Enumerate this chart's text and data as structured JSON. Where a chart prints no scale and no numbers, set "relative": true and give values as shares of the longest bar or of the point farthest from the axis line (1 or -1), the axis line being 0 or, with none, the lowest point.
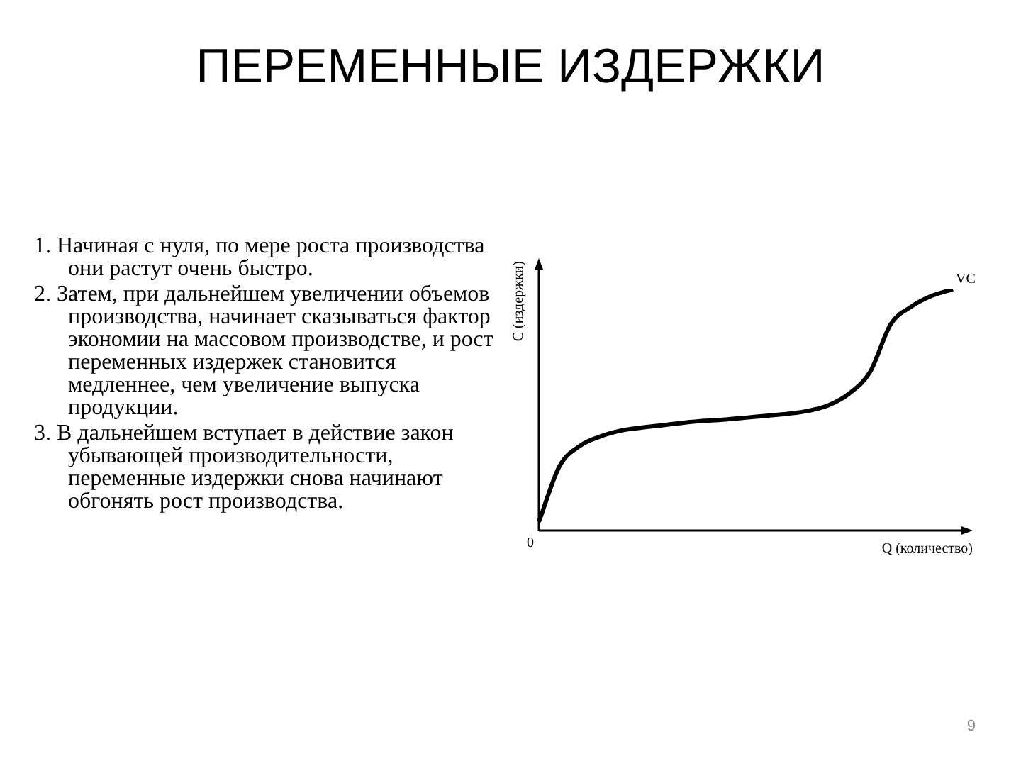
{
  "chart_data": {
    "type": "line",
    "title": "ПЕРЕМЕННЫЕ ИЗДЕРЖКИ",
    "xlabel": "Q (количество)",
    "ylabel": "С (издержки)",
    "relative": true,
    "categories": [
      null,
      null,
      null,
      null,
      null,
      null,
      null,
      null,
      null,
      null,
      null,
      null,
      null,
      null,
      null,
      null,
      null,
      null,
      null,
      null,
      null
    ],
    "series": [
      {
        "name": "VC",
        "color": "#000000",
        "values": [
          0.036,
          0.267,
          0.352,
          0.391,
          0.415,
          0.427,
          0.437,
          0.447,
          0.455,
          0.46,
          0.468,
          0.476,
          0.484,
          0.496,
          0.52,
          0.569,
          0.658,
          0.856,
          0.929,
          0.974,
          1.0
        ]
      }
    ],
    "marker": "none",
    "grid": false,
    "legend": false,
    "annotations": [
      "1. Начиная с нуля, по мере роста производства они растут очень быстро.",
      "2. Затем, при дальнейшем увеличении объемов производства, начинает сказываться фактор экономии на массовом производстве, и рост переменных издержек становится медленнее, чем увеличение выпуска продукции.",
      "3. В дальнейшем вступает в действие закон убывающей производительности, переменные издержки снова начинают обгонять рост производства.",
      "0",
      "9"
    ]
  }
}
